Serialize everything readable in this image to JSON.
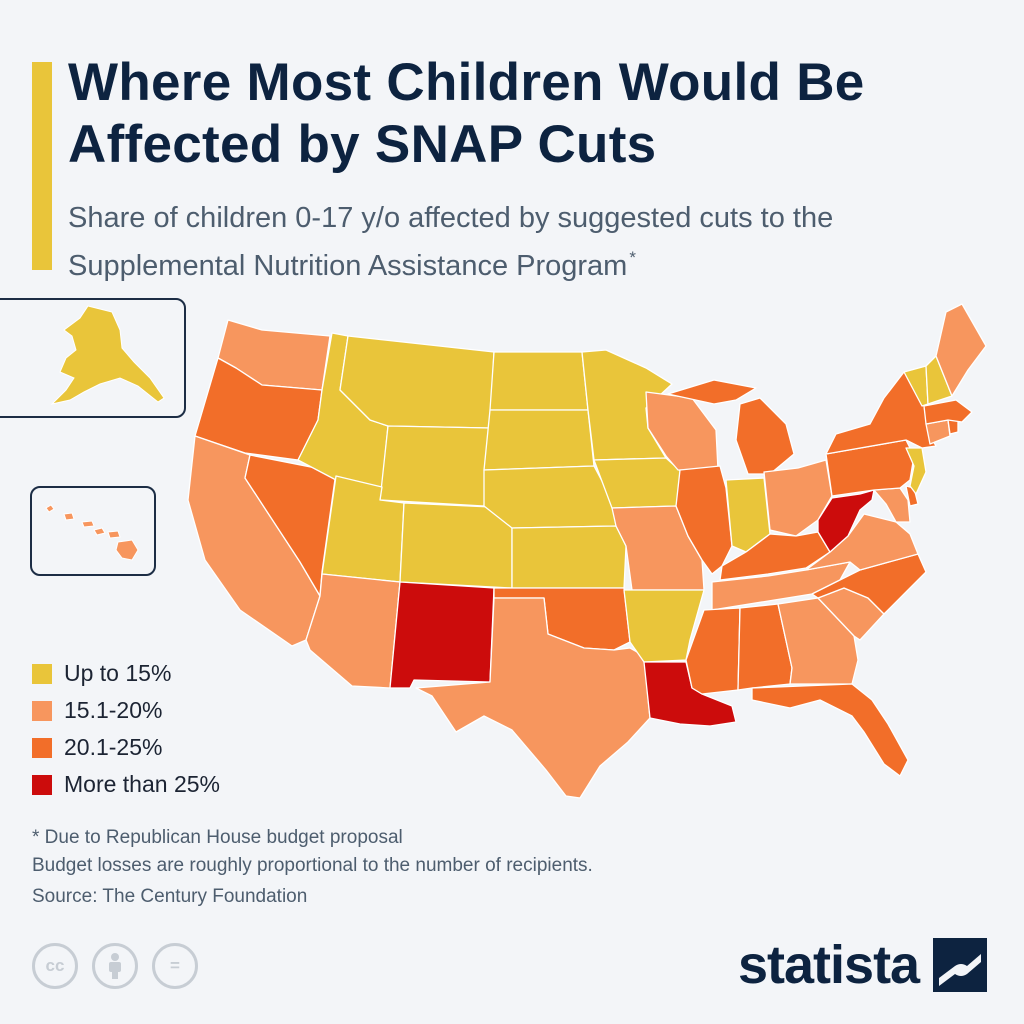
{
  "title": "Where Most Children Would Be Affected by SNAP Cuts",
  "subtitle": "Share of children 0-17 y/o affected by suggested cuts to the Supplemental Nutrition Assistance Program",
  "subtitle_mark": "*",
  "colors": {
    "accent": "#e9c53a",
    "up_to_15": "#e9c53a",
    "from_15_to_20": "#f7965e",
    "from_20_to_25": "#f26e29",
    "over_25": "#cc0c0c"
  },
  "legend": [
    {
      "label": "Up to 15%",
      "category": "up_to_15"
    },
    {
      "label": "15.1-20%",
      "category": "from_15_to_20"
    },
    {
      "label": "20.1-25%",
      "category": "from_20_to_25"
    },
    {
      "label": "More than 25%",
      "category": "over_25"
    }
  ],
  "states": {
    "WA": "from_15_to_20",
    "OR": "from_20_to_25",
    "CA": "from_15_to_20",
    "NV": "from_20_to_25",
    "ID": "up_to_15",
    "MT": "up_to_15",
    "WY": "up_to_15",
    "UT": "up_to_15",
    "AZ": "from_15_to_20",
    "CO": "up_to_15",
    "NM": "over_25",
    "ND": "up_to_15",
    "SD": "up_to_15",
    "NE": "up_to_15",
    "KS": "up_to_15",
    "OK": "from_20_to_25",
    "TX": "from_15_to_20",
    "MN": "up_to_15",
    "IA": "up_to_15",
    "MO": "from_15_to_20",
    "AR": "up_to_15",
    "LA": "over_25",
    "WI": "from_15_to_20",
    "IL": "from_20_to_25",
    "MI": "from_20_to_25",
    "IN": "up_to_15",
    "OH": "from_15_to_20",
    "KY": "from_20_to_25",
    "TN": "from_15_to_20",
    "MS": "from_20_to_25",
    "AL": "from_20_to_25",
    "GA": "from_15_to_20",
    "FL": "from_20_to_25",
    "SC": "from_15_to_20",
    "NC": "from_20_to_25",
    "VA": "from_15_to_20",
    "WV": "over_25",
    "MD": "from_15_to_20",
    "DE": "from_20_to_25",
    "PA": "from_20_to_25",
    "NJ": "up_to_15",
    "NY": "from_20_to_25",
    "CT": "from_15_to_20",
    "RI": "from_20_to_25",
    "MA": "from_20_to_25",
    "VT": "up_to_15",
    "NH": "up_to_15",
    "ME": "from_15_to_20",
    "AK": "up_to_15",
    "HI": "from_15_to_20"
  },
  "notes": [
    "* Due to Republican House budget proposal",
    "Budget losses are roughly proportional to the number of recipients."
  ],
  "source": "Source: The Century Foundation",
  "license_icons": [
    "cc-icon",
    "attribution-icon",
    "no-derivatives-icon"
  ],
  "license_labels": [
    "cc",
    "="
  ],
  "brand": "statista"
}
